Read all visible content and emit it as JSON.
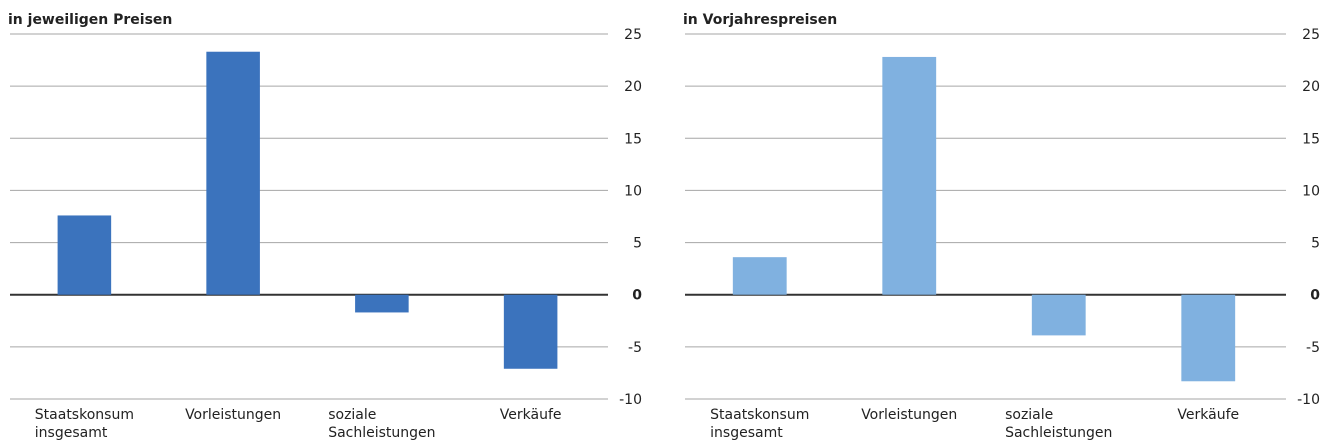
{
  "chart_data": [
    {
      "type": "bar",
      "title": "in jeweiligen Preisen",
      "categories": [
        "Staatskonsum insgesamt",
        "Vorleistungen",
        "soziale Sachleistungen",
        "Verkäufe"
      ],
      "values": [
        7.6,
        23.3,
        -1.7,
        -7.1
      ],
      "color": "#3b73bd",
      "ylim": [
        -10,
        25
      ],
      "yticks": [
        -10,
        -5,
        0,
        5,
        10,
        15,
        20,
        25
      ],
      "grid": true
    },
    {
      "type": "bar",
      "title": "in Vorjahrespreisen",
      "categories": [
        "Staatskonsum insgesamt",
        "Vorleistungen",
        "soziale Sachleistungen",
        "Verkäufe"
      ],
      "values": [
        3.6,
        22.8,
        -3.9,
        -8.3
      ],
      "color": "#80b1e0",
      "ylim": [
        -10,
        25
      ],
      "yticks": [
        -10,
        -5,
        0,
        5,
        10,
        15,
        20,
        25
      ],
      "grid": true
    }
  ]
}
